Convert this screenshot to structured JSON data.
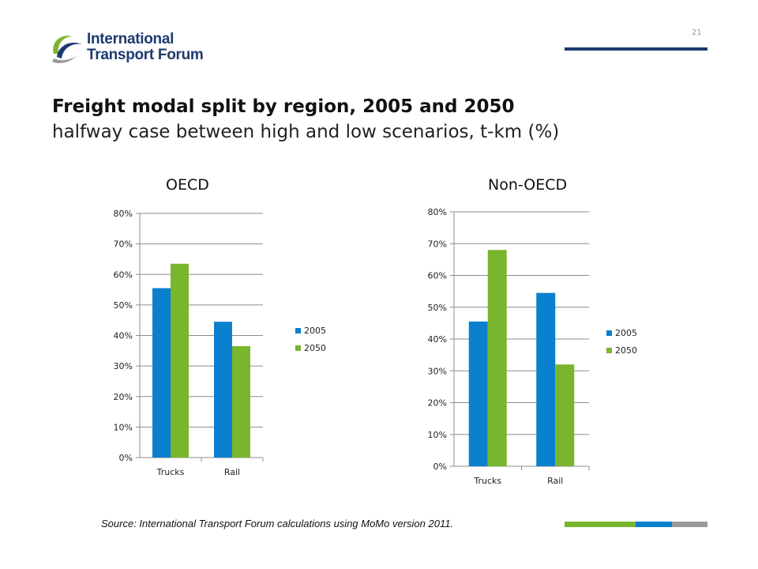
{
  "header": {
    "logo_line1": "International",
    "logo_line2": "Transport Forum",
    "page_number": "21",
    "title": "Freight modal split by region, 2005 and 2050",
    "subtitle": "halfway case between high and low scenarios, t-km (%)"
  },
  "footer": {
    "source": "Source: International Transport Forum calculations using MoMo version 2011."
  },
  "colors": {
    "series_2005": "#0a80cf",
    "series_2050": "#7ab52e",
    "navy": "#1d3a6e",
    "gray": "#9a9a9a"
  },
  "chart_data": [
    {
      "type": "bar",
      "title": "OECD",
      "categories": [
        "Trucks",
        "Rail"
      ],
      "series": [
        {
          "name": "2005",
          "values": [
            55.5,
            44.5
          ]
        },
        {
          "name": "2050",
          "values": [
            63.5,
            36.5
          ]
        }
      ],
      "ylim": [
        0,
        80
      ],
      "yticks": [
        0,
        10,
        20,
        30,
        40,
        50,
        60,
        70,
        80
      ],
      "ytick_labels": [
        "0%",
        "10%",
        "20%",
        "30%",
        "40%",
        "50%",
        "60%",
        "70%",
        "80%"
      ],
      "grid": true,
      "legend": "right"
    },
    {
      "type": "bar",
      "title": "Non-OECD",
      "categories": [
        "Trucks",
        "Rail"
      ],
      "series": [
        {
          "name": "2005",
          "values": [
            45.5,
            54.5
          ]
        },
        {
          "name": "2050",
          "values": [
            68,
            32
          ]
        }
      ],
      "ylim": [
        0,
        80
      ],
      "yticks": [
        0,
        10,
        20,
        30,
        40,
        50,
        60,
        70,
        80
      ],
      "ytick_labels": [
        "0%",
        "10%",
        "20%",
        "30%",
        "40%",
        "50%",
        "60%",
        "70%",
        "80%"
      ],
      "grid": true,
      "legend": "right"
    }
  ]
}
